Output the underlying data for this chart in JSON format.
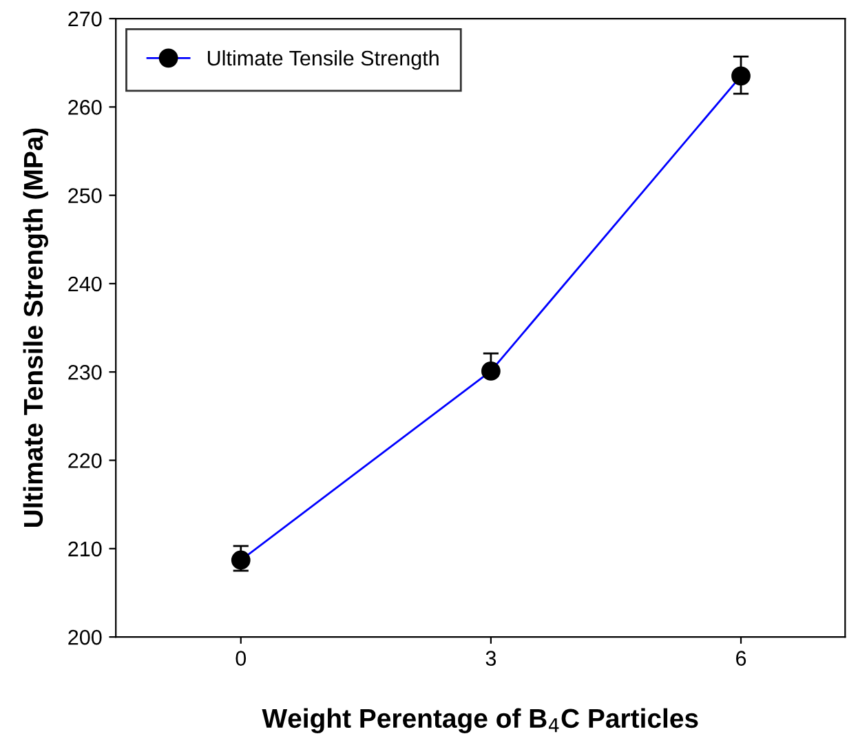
{
  "chart_data": {
    "type": "line",
    "xlabel": "Weight Perentage of B$_{4}$C Particles",
    "ylabel": "Ultimate Tensile Strength (MPa)",
    "x": [
      0,
      3,
      6
    ],
    "series": [
      {
        "name": "Ultimate Tensile Strength",
        "color": "#0000ff",
        "values": [
          208.7,
          230.1,
          263.5
        ],
        "errors": [
          [
            207.5,
            210.3
          ],
          [
            229.5,
            232.1
          ],
          [
            261.5,
            265.7
          ]
        ]
      }
    ],
    "xlim": [
      -1.5,
      7.25
    ],
    "xticks": [
      0,
      3,
      6
    ],
    "ylim": [
      200,
      270
    ],
    "yticks": [
      200,
      210,
      220,
      230,
      240,
      250,
      260,
      270
    ],
    "marker": "circle",
    "line_style": "solid",
    "legend": "top left",
    "grid": false
  }
}
